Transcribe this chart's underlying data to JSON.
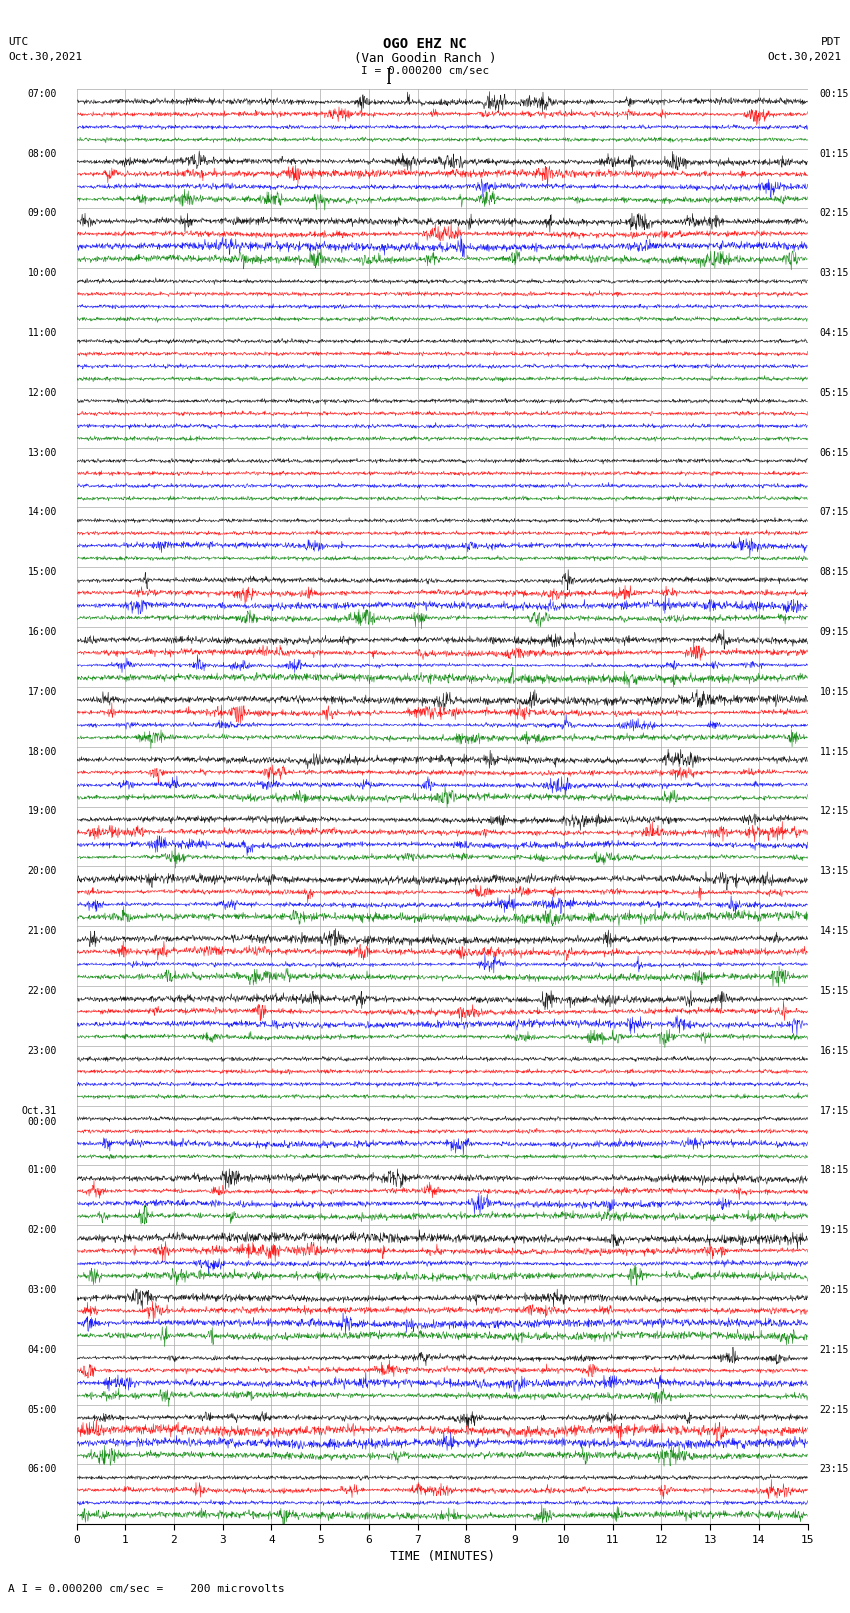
{
  "title_line1": "OGO EHZ NC",
  "title_line2": "(Van Goodin Ranch )",
  "scale_label": "I = 0.000200 cm/sec",
  "bottom_label": "A I = 0.000200 cm/sec =    200 microvolts",
  "xlabel": "TIME (MINUTES)",
  "xlim": [
    0,
    15
  ],
  "xticks": [
    0,
    1,
    2,
    3,
    4,
    5,
    6,
    7,
    8,
    9,
    10,
    11,
    12,
    13,
    14,
    15
  ],
  "fig_width": 8.5,
  "fig_height": 16.13,
  "dpi": 100,
  "bg_color": "white",
  "rows": [
    {
      "time": "07:00",
      "pdt": "00:15",
      "amps": {
        "black": 0.8,
        "red": 0.8,
        "blue": 0.05,
        "green": 0.05
      }
    },
    {
      "time": "08:00",
      "pdt": "01:15",
      "amps": {
        "black": 0.4,
        "red": 0.5,
        "blue": 0.6,
        "green": 0.6
      }
    },
    {
      "time": "09:00",
      "pdt": "02:15",
      "amps": {
        "black": 0.9,
        "red": 0.6,
        "blue": 0.25,
        "green": 0.3
      }
    },
    {
      "time": "10:00",
      "pdt": "03:15",
      "amps": {
        "black": 0.05,
        "red": 0.05,
        "blue": 0.05,
        "green": 0.05
      }
    },
    {
      "time": "11:00",
      "pdt": "04:15",
      "amps": {
        "black": 0.05,
        "red": 0.05,
        "blue": 0.05,
        "green": 0.05
      }
    },
    {
      "time": "12:00",
      "pdt": "05:15",
      "amps": {
        "black": 0.05,
        "red": 0.05,
        "blue": 0.05,
        "green": 0.05
      }
    },
    {
      "time": "13:00",
      "pdt": "06:15",
      "amps": {
        "black": 0.05,
        "red": 0.05,
        "blue": 0.05,
        "green": 0.05
      }
    },
    {
      "time": "14:00",
      "pdt": "07:15",
      "amps": {
        "black": 0.05,
        "red": 0.05,
        "blue": 0.15,
        "green": 0.05
      }
    },
    {
      "time": "15:00",
      "pdt": "08:15",
      "amps": {
        "black": 0.6,
        "red": 0.8,
        "blue": 0.7,
        "green": 0.7
      }
    },
    {
      "time": "16:00",
      "pdt": "09:15",
      "amps": {
        "black": 0.5,
        "red": 0.3,
        "blue": 0.3,
        "green": 0.6
      }
    },
    {
      "time": "17:00",
      "pdt": "10:15",
      "amps": {
        "black": 0.5,
        "red": 0.25,
        "blue": 0.25,
        "green": 0.25
      }
    },
    {
      "time": "18:00",
      "pdt": "11:15",
      "amps": {
        "black": 0.6,
        "red": 0.9,
        "blue": 0.5,
        "green": 0.5
      }
    },
    {
      "time": "19:00",
      "pdt": "12:15",
      "amps": {
        "black": 0.9,
        "red": 0.8,
        "blue": 0.8,
        "green": 0.5
      }
    },
    {
      "time": "20:00",
      "pdt": "13:15",
      "amps": {
        "black": 0.6,
        "red": 0.7,
        "blue": 0.6,
        "green": 0.5
      }
    },
    {
      "time": "21:00",
      "pdt": "14:15",
      "amps": {
        "black": 0.7,
        "red": 0.8,
        "blue": 0.8,
        "green": 0.5
      }
    },
    {
      "time": "22:00",
      "pdt": "15:15",
      "amps": {
        "black": 0.4,
        "red": 0.8,
        "blue": 0.2,
        "green": 0.2
      }
    },
    {
      "time": "23:00",
      "pdt": "16:15",
      "amps": {
        "black": 0.05,
        "red": 0.05,
        "blue": 0.05,
        "green": 0.05
      }
    },
    {
      "time": "Oct.31\n00:00",
      "pdt": "17:15",
      "amps": {
        "black": 0.05,
        "red": 0.05,
        "blue": 0.5,
        "green": 0.05
      }
    },
    {
      "time": "01:00",
      "pdt": "18:15",
      "amps": {
        "black": 0.6,
        "red": 0.7,
        "blue": 0.6,
        "green": 0.5
      }
    },
    {
      "time": "02:00",
      "pdt": "19:15",
      "amps": {
        "black": 0.7,
        "red": 0.9,
        "blue": 0.8,
        "green": 0.7
      }
    },
    {
      "time": "03:00",
      "pdt": "20:15",
      "amps": {
        "black": 0.8,
        "red": 0.9,
        "blue": 0.7,
        "green": 0.8
      }
    },
    {
      "time": "04:00",
      "pdt": "21:15",
      "amps": {
        "black": 0.7,
        "red": 0.7,
        "blue": 0.6,
        "green": 0.9
      }
    },
    {
      "time": "05:00",
      "pdt": "22:15",
      "amps": {
        "black": 0.6,
        "red": 0.8,
        "blue": 0.7,
        "green": 0.6
      }
    },
    {
      "time": "06:00",
      "pdt": "23:15",
      "amps": {
        "black": 0.05,
        "red": 0.15,
        "blue": 0.05,
        "green": 0.55
      }
    }
  ],
  "grid_color": "#aaaaaa",
  "grid_lw": 0.5
}
